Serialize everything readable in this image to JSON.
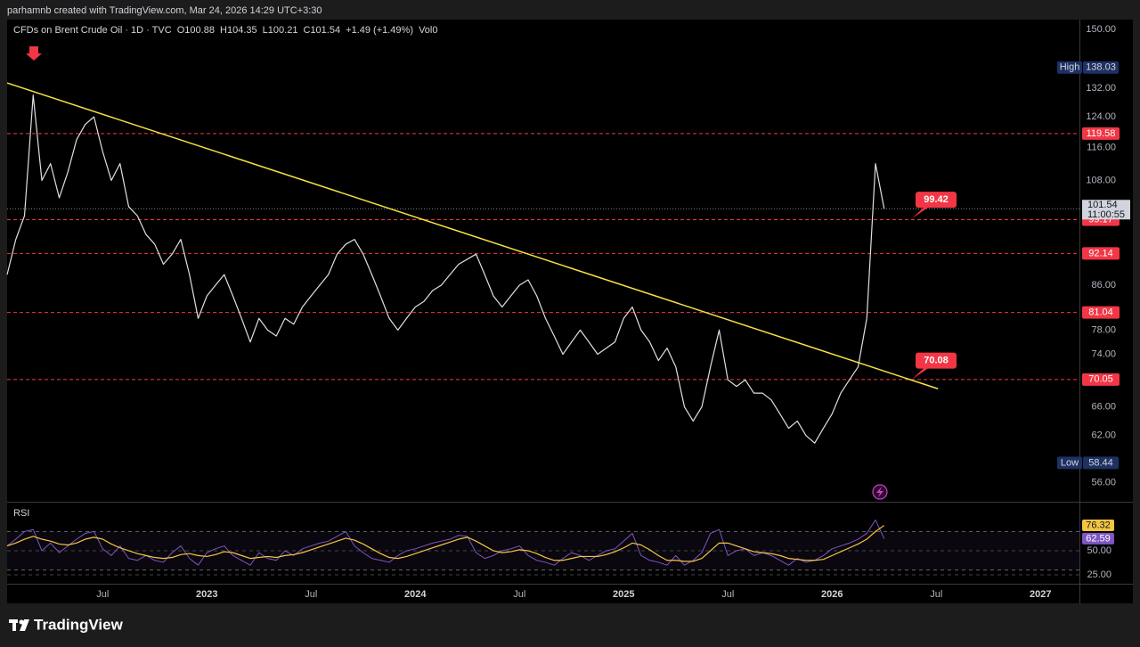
{
  "header": "parhamnb created with TradingView.com, Mar 24, 2026 14:29 UTC+3:30",
  "footer": "TradingView",
  "chart_data": [
    {
      "type": "line",
      "legend": [
        "CFDs on Brent Crude Oil · 1D · TVC",
        "O100.88",
        "H104.35",
        "L100.21",
        "C101.54",
        "+1.49 (+1.49%)",
        "Vol0"
      ],
      "log_scale": true,
      "categories": [
        null,
        null,
        null,
        null,
        null,
        null,
        null,
        null,
        null,
        null,
        null,
        "Jul",
        null,
        null,
        null,
        null,
        null,
        null,
        null,
        null,
        null,
        null,
        null,
        "2023",
        null,
        null,
        null,
        null,
        null,
        null,
        null,
        null,
        null,
        null,
        null,
        "Jul",
        null,
        null,
        null,
        null,
        null,
        null,
        null,
        null,
        null,
        null,
        null,
        "2024",
        null,
        null,
        null,
        null,
        null,
        null,
        null,
        null,
        null,
        null,
        null,
        "Jul",
        null,
        null,
        null,
        null,
        null,
        null,
        null,
        null,
        null,
        null,
        null,
        "2025",
        null,
        null,
        null,
        null,
        null,
        null,
        null,
        null,
        null,
        null,
        null,
        "Jul",
        null,
        null,
        null,
        null,
        null,
        null,
        null,
        null,
        null,
        null,
        null,
        "2026",
        null,
        null,
        null,
        null,
        null,
        null,
        null,
        null,
        null,
        null,
        null,
        "Jul",
        null,
        null,
        null,
        null,
        null,
        null,
        null,
        null,
        null,
        null,
        null,
        "2027",
        null,
        null,
        null,
        null
      ],
      "series": [
        {
          "color": "#e0e0e0",
          "values": [
            88,
            95,
            100,
            130,
            108,
            112,
            104,
            110,
            118,
            122,
            124,
            115,
            108,
            112,
            102,
            100,
            96,
            94,
            90,
            92,
            95,
            88,
            80,
            84,
            86,
            88,
            84,
            80,
            76,
            80,
            78,
            77,
            80,
            79,
            82,
            84,
            86,
            88,
            92,
            94,
            95,
            92,
            88,
            84,
            80,
            78,
            80,
            82,
            83,
            85,
            86,
            88,
            90,
            91,
            92,
            88,
            84,
            82,
            84,
            86,
            87,
            84,
            80,
            77,
            74,
            76,
            78,
            76,
            74,
            75,
            76,
            80,
            82,
            78,
            76,
            73,
            75,
            72,
            66,
            64,
            66,
            72,
            78,
            70,
            69,
            70,
            68,
            68,
            67,
            65,
            63,
            64,
            62,
            61,
            63,
            65,
            68,
            70,
            72,
            80,
            112,
            101.54,
            null,
            null,
            null,
            null,
            null,
            null,
            null,
            null,
            null,
            null,
            null,
            null,
            null,
            null,
            null,
            null,
            null,
            null,
            null,
            null,
            null,
            null
          ]
        }
      ],
      "ylim": [
        53.7,
        153.2
      ],
      "yticks": [
        {
          "value": 150,
          "label": "150.00"
        },
        {
          "value": 132,
          "label": "132.00"
        },
        {
          "value": 124,
          "label": "124.00"
        },
        {
          "value": 116,
          "label": "116.00"
        },
        {
          "value": 108,
          "label": "108.00"
        },
        {
          "value": 86,
          "label": "86.00"
        },
        {
          "value": 78,
          "label": "78.00"
        },
        {
          "value": 74,
          "label": "74.00"
        },
        {
          "value": 66,
          "label": "66.00"
        },
        {
          "value": 62,
          "label": "62.00"
        },
        {
          "value": 56,
          "label": "56.00"
        }
      ],
      "levels": [
        119.58,
        99.17,
        92.14,
        81.04,
        70.05
      ],
      "level_color": "#f23645",
      "last": 101.54,
      "countdown": "11:00:55",
      "high_label": "High",
      "high": 138.03,
      "low_label": "Low",
      "low": 58.44,
      "callouts": [
        99.42,
        70.08
      ],
      "trendline": {
        "at": [
          0,
          107.2
        ],
        "values": [
          133.5,
          68.65
        ],
        "color": "#f5e342"
      }
    },
    {
      "type": "line",
      "title": "RSI",
      "series": [
        {
          "color": "#7e57c2",
          "values": [
            55,
            62,
            70,
            72,
            50,
            58,
            48,
            55,
            62,
            68,
            70,
            52,
            45,
            55,
            42,
            40,
            45,
            40,
            38,
            48,
            55,
            42,
            35,
            48,
            52,
            55,
            45,
            40,
            35,
            48,
            42,
            40,
            50,
            45,
            52,
            55,
            58,
            60,
            65,
            70,
            55,
            48,
            42,
            40,
            38,
            45,
            50,
            52,
            55,
            58,
            60,
            62,
            66,
            65,
            48,
            42,
            45,
            50,
            52,
            55,
            45,
            40,
            38,
            35,
            42,
            48,
            45,
            40,
            45,
            50,
            52,
            60,
            68,
            45,
            40,
            38,
            35,
            45,
            35,
            40,
            48,
            68,
            72,
            45,
            50,
            52,
            45,
            48,
            45,
            40,
            35,
            42,
            38,
            40,
            45,
            52,
            55,
            58,
            62,
            68,
            82,
            62.59,
            null,
            null,
            null,
            null,
            null,
            null,
            null,
            null,
            null,
            null,
            null,
            null,
            null,
            null,
            null,
            null,
            null,
            null,
            null,
            null,
            null,
            null
          ]
        },
        {
          "color": "#f5c542",
          "values": [
            55,
            58,
            62,
            65,
            62,
            60,
            57,
            56,
            58,
            62,
            64,
            62,
            57,
            53,
            50,
            47,
            45,
            43,
            42,
            43,
            46,
            47,
            45,
            44,
            46,
            49,
            48,
            45,
            42,
            43,
            44,
            43,
            45,
            46,
            48,
            51,
            54,
            57,
            60,
            63,
            61,
            57,
            52,
            47,
            43,
            42,
            44,
            47,
            50,
            53,
            56,
            59,
            62,
            64,
            60,
            55,
            50,
            48,
            49,
            51,
            50,
            47,
            43,
            40,
            40,
            42,
            44,
            44,
            44,
            46,
            49,
            53,
            58,
            56,
            51,
            45,
            40,
            40,
            39,
            39,
            42,
            50,
            58,
            58,
            55,
            52,
            49,
            48,
            47,
            45,
            42,
            41,
            40,
            40,
            41,
            45,
            49,
            53,
            57,
            62,
            70,
            76.32,
            null,
            null,
            null,
            null,
            null,
            null,
            null,
            null,
            null,
            null,
            null,
            null,
            null,
            null,
            null,
            null,
            null,
            null,
            null,
            null,
            null,
            null
          ]
        }
      ],
      "ylim": [
        15.7,
        100
      ],
      "yticks": [
        {
          "value": 50,
          "label": "50.00"
        },
        {
          "value": 25,
          "label": "25.00"
        }
      ],
      "bands": [
        70,
        30
      ]
    }
  ]
}
